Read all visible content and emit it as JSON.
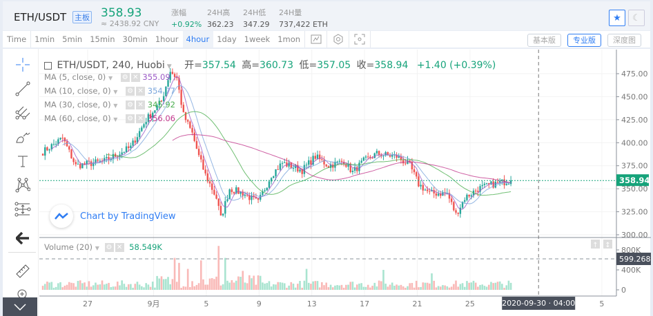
{
  "header": {
    "pair": "ETH/USDT",
    "board_badge": "主板",
    "last_price": "358.93",
    "cny_price": "≈ 2438.92 CNY",
    "stats": [
      {
        "label": "涨幅",
        "value": "+0.92%",
        "color": "#16a37a"
      },
      {
        "label": "24H高",
        "value": "362.23"
      },
      {
        "label": "24H低",
        "value": "347.29"
      },
      {
        "label": "24H量",
        "value": "737,422 ETH"
      }
    ],
    "favorite_icon": "star-icon",
    "theme_icon": "moon-icon"
  },
  "toolbar": {
    "intervals": [
      "Time",
      "1min",
      "5min",
      "15min",
      "30min",
      "1hour",
      "4hour",
      "1day",
      "1week",
      "1mon"
    ],
    "active": "4hour",
    "tools": [
      "indicator-icon",
      "settings-icon",
      "fullscreen-icon"
    ],
    "versions": [
      "基本版",
      "专业版",
      "深度图"
    ],
    "active_version": "专业版"
  },
  "chart": {
    "title": "ETH/USDT, 240, Huobi",
    "open_label": "开=",
    "open": "357.54",
    "high_label": "高=",
    "high": "360.73",
    "low_label": "低=",
    "low": "357.05",
    "close_label": "收=",
    "close": "358.94",
    "change": "+1.40 (+0.39%)",
    "indicators": [
      {
        "label": "MA (5, close, 0)",
        "value": "355.09",
        "color": "#9b59c6"
      },
      {
        "label": "MA (10, close, 0)",
        "value": "354.77",
        "color": "#7aa5dc"
      },
      {
        "label": "MA (30, close, 0)",
        "value": "345.92",
        "color": "#4caf50"
      },
      {
        "label": "MA (60, close, 0)",
        "value": "356.06",
        "color": "#c2378c"
      }
    ],
    "watermark": "Chart by TradingView",
    "volume_label": "Volume (20)",
    "volume_value": "58.549K",
    "crosshair_time": "2020-09-30 · 04:00",
    "crosshair_volume": "599.268",
    "last_price_tag": "358.94"
  },
  "chart_data": {
    "type": "candlestick",
    "up_color": "#26a69a",
    "down_color": "#ef5350",
    "price_axis": {
      "ticks": [
        "475.00",
        "450.00",
        "425.00",
        "400.00",
        "375.00",
        "350.00",
        "325.00",
        "300.00"
      ],
      "values": [
        475,
        450,
        425,
        400,
        375,
        350,
        325,
        300
      ],
      "range": [
        300,
        475
      ]
    },
    "volume_axis": {
      "ticks": [
        "800K",
        "400K",
        "0"
      ],
      "values": [
        800,
        400,
        0
      ],
      "unit": "K"
    },
    "time_ticks": [
      {
        "label": "27",
        "day": 0
      },
      {
        "label": "9月",
        "day": 5
      },
      {
        "label": "5",
        "day": 9
      },
      {
        "label": "9",
        "day": 13
      },
      {
        "label": "13",
        "day": 17
      },
      {
        "label": "17",
        "day": 21
      },
      {
        "label": "21",
        "day": 25
      },
      {
        "label": "25",
        "day": 29
      },
      {
        "label": "5",
        "day": 39
      }
    ],
    "candles_per_day": 6,
    "first_candle_day": -3.4,
    "crosshair_day": 34.2,
    "close_waypoints": [
      [
        0,
        390
      ],
      [
        9,
        405
      ],
      [
        15,
        375
      ],
      [
        28,
        380
      ],
      [
        40,
        395
      ],
      [
        47,
        425
      ],
      [
        54,
        445
      ],
      [
        58,
        478
      ],
      [
        61,
        470
      ],
      [
        64,
        430
      ],
      [
        68,
        410
      ],
      [
        71,
        385
      ],
      [
        74,
        365
      ],
      [
        79,
        340
      ],
      [
        81,
        318
      ],
      [
        85,
        350
      ],
      [
        91,
        345
      ],
      [
        98,
        335
      ],
      [
        104,
        365
      ],
      [
        109,
        378
      ],
      [
        118,
        370
      ],
      [
        124,
        385
      ],
      [
        130,
        375
      ],
      [
        137,
        380
      ],
      [
        141,
        368
      ],
      [
        146,
        380
      ],
      [
        152,
        388
      ],
      [
        161,
        385
      ],
      [
        167,
        375
      ],
      [
        171,
        355
      ],
      [
        176,
        345
      ],
      [
        184,
        345
      ],
      [
        188,
        322
      ],
      [
        192,
        340
      ],
      [
        198,
        350
      ],
      [
        205,
        355
      ],
      [
        213,
        359
      ]
    ],
    "volume_spikes": [
      [
        60,
        640
      ],
      [
        62,
        540
      ],
      [
        66,
        420
      ],
      [
        72,
        590
      ],
      [
        80,
        880
      ],
      [
        83,
        640
      ],
      [
        91,
        380
      ],
      [
        120,
        420
      ],
      [
        155,
        400
      ],
      [
        177,
        330
      ]
    ]
  }
}
